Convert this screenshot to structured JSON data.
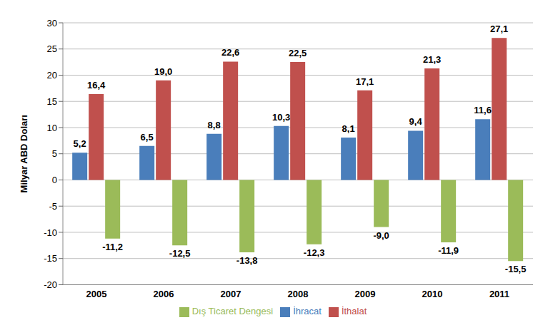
{
  "chart_data": {
    "type": "bar",
    "y_label": "Milyar ABD Doları",
    "categories": [
      "2005",
      "2006",
      "2007",
      "2008",
      "2009",
      "2010",
      "2011"
    ],
    "series": [
      {
        "name": "İhracat",
        "color": "#4a7ebb",
        "values": [
          5.2,
          6.5,
          8.8,
          10.3,
          8.1,
          9.4,
          11.6
        ],
        "value_labels": [
          "5,2",
          "6,5",
          "8,8",
          "10,3",
          "8,1",
          "9,4",
          "11,6"
        ]
      },
      {
        "name": "İthalat",
        "color": "#c0504d",
        "values": [
          16.4,
          19.0,
          22.6,
          22.5,
          17.1,
          21.3,
          27.1
        ],
        "value_labels": [
          "16,4",
          "19,0",
          "22,6",
          "22,5",
          "17,1",
          "21,3",
          "27,1"
        ]
      },
      {
        "name": "Dış Ticaret Dengesi",
        "color": "#9bbb59",
        "values": [
          -11.2,
          -12.5,
          -13.8,
          -12.3,
          -9.0,
          -11.9,
          -15.5
        ],
        "value_labels": [
          "-11,2",
          "-12,5",
          "-13,8",
          "-12,3",
          "-9,0",
          "-11,9",
          "-15,5"
        ]
      }
    ],
    "ylim": [
      -20,
      30
    ],
    "yticks": [
      -20,
      -15,
      -10,
      -5,
      0,
      5,
      10,
      15,
      20,
      25,
      30
    ],
    "grid": true,
    "legend": "bottom",
    "data_labels": true
  }
}
